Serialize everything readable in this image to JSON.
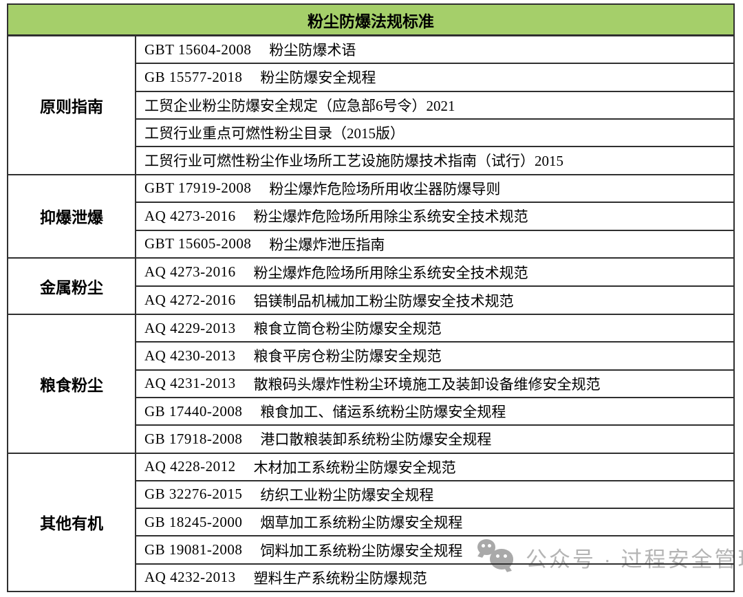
{
  "table": {
    "title": "粉尘防爆法规标准",
    "sections": [
      {
        "category": "原则指南",
        "items": [
          {
            "code": "GBT 15604-2008",
            "name": "粉尘防爆术语"
          },
          {
            "code": "GB 15577-2018",
            "name": "粉尘防爆安全规程"
          },
          {
            "code": "",
            "name": "工贸企业粉尘防爆安全规定（应急部6号令）2021"
          },
          {
            "code": "",
            "name": "工贸行业重点可燃性粉尘目录（2015版）"
          },
          {
            "code": "",
            "name": "工贸行业可燃性粉尘作业场所工艺设施防爆技术指南（试行）2015"
          }
        ]
      },
      {
        "category": "抑爆泄爆",
        "items": [
          {
            "code": "GBT 17919-2008",
            "name": "粉尘爆炸危险场所用收尘器防爆导则"
          },
          {
            "code": "AQ 4273-2016",
            "name": "粉尘爆炸危险场所用除尘系统安全技术规范"
          },
          {
            "code": "GBT 15605-2008",
            "name": "粉尘爆炸泄压指南"
          }
        ]
      },
      {
        "category": "金属粉尘",
        "items": [
          {
            "code": "AQ 4273-2016",
            "name": "粉尘爆炸危险场所用除尘系统安全技术规范"
          },
          {
            "code": "AQ 4272-2016",
            "name": "铝镁制品机械加工粉尘防爆安全技术规范"
          }
        ]
      },
      {
        "category": "粮食粉尘",
        "items": [
          {
            "code": "AQ 4229-2013",
            "name": "粮食立筒仓粉尘防爆安全规范"
          },
          {
            "code": "AQ 4230-2013",
            "name": "粮食平房仓粉尘防爆安全规范"
          },
          {
            "code": "AQ 4231-2013",
            "name": "散粮码头爆炸性粉尘环境施工及装卸设备维修安全规范"
          },
          {
            "code": "GB 17440-2008",
            "name": "粮食加工、储运系统粉尘防爆安全规程"
          },
          {
            "code": "GB 17918-2008",
            "name": "港口散粮装卸系统粉尘防爆安全规程"
          }
        ]
      },
      {
        "category": "其他有机",
        "items": [
          {
            "code": "AQ 4228-2012",
            "name": "木材加工系统粉尘防爆安全规范"
          },
          {
            "code": "GB 32276-2015",
            "name": "纺织工业粉尘防爆安全规程"
          },
          {
            "code": "GB 18245-2000",
            "name": "烟草加工系统粉尘防爆安全规程"
          },
          {
            "code": "GB 19081-2008",
            "name": "饲料加工系统粉尘防爆安全规程"
          },
          {
            "code": "AQ 4232-2013",
            "name": "塑料生产系统粉尘防爆规范"
          }
        ]
      }
    ]
  },
  "watermark": {
    "icon": "wechat-bubbles-icon",
    "text": "公众号 · 过程安全管理"
  },
  "colors": {
    "header_green": "#a5cf6a",
    "border": "#2f2f2f",
    "watermark_gray": "#b4b4b4"
  }
}
